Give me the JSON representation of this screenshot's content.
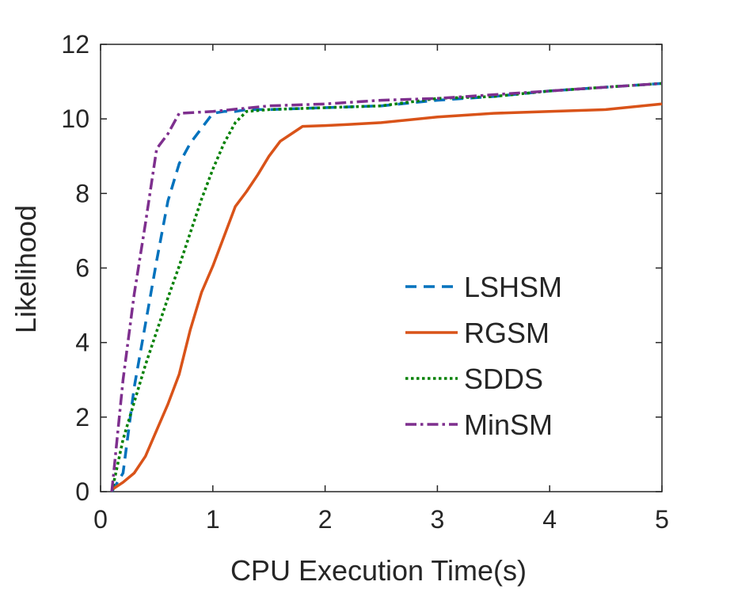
{
  "chart_data": {
    "type": "line",
    "title": "",
    "xlabel": "CPU Execution Time(s)",
    "ylabel": "Likelihood",
    "xlim": [
      0,
      5
    ],
    "ylim": [
      0,
      12
    ],
    "xticks": [
      0,
      1,
      2,
      3,
      4,
      5
    ],
    "yticks": [
      0,
      2,
      4,
      6,
      8,
      10,
      12
    ],
    "xtick_labels": [
      "0",
      "1",
      "2",
      "3",
      "4",
      "5"
    ],
    "ytick_labels": [
      "0",
      "2",
      "4",
      "6",
      "8",
      "10",
      "12"
    ],
    "grid": false,
    "legend_position": "center-right",
    "series": [
      {
        "name": "LSHSM",
        "color": "#0072BD",
        "dash": "dashed",
        "x": [
          0.1,
          0.2,
          0.3,
          0.4,
          0.5,
          0.6,
          0.7,
          0.8,
          0.9,
          1.0,
          1.1,
          1.2,
          1.3,
          1.5,
          2.0,
          2.5,
          3.0,
          3.5,
          4.0,
          4.5,
          5.0
        ],
        "y": [
          0.0,
          0.5,
          2.8,
          4.5,
          6.2,
          7.8,
          8.8,
          9.35,
          9.75,
          10.15,
          10.2,
          10.2,
          10.25,
          10.25,
          10.3,
          10.35,
          10.5,
          10.6,
          10.75,
          10.85,
          10.95
        ]
      },
      {
        "name": "RGSM",
        "color": "#D95319",
        "dash": "solid",
        "x": [
          0.1,
          0.2,
          0.3,
          0.4,
          0.5,
          0.6,
          0.7,
          0.8,
          0.9,
          1.0,
          1.1,
          1.2,
          1.3,
          1.4,
          1.5,
          1.6,
          1.7,
          1.8,
          2.0,
          2.2,
          2.5,
          3.0,
          3.5,
          4.0,
          4.5,
          5.0
        ],
        "y": [
          0.05,
          0.25,
          0.5,
          0.95,
          1.65,
          2.35,
          3.15,
          4.35,
          5.35,
          6.05,
          6.85,
          7.65,
          8.05,
          8.5,
          9.0,
          9.4,
          9.6,
          9.8,
          9.82,
          9.85,
          9.9,
          10.05,
          10.15,
          10.2,
          10.25,
          10.4
        ]
      },
      {
        "name": "SDDS",
        "color": "#008000",
        "dash": "dotted",
        "x": [
          0.1,
          0.2,
          0.3,
          0.4,
          0.5,
          0.6,
          0.7,
          0.8,
          0.9,
          1.0,
          1.1,
          1.2,
          1.3,
          1.5,
          2.0,
          2.5,
          3.0,
          3.5,
          4.0,
          4.5,
          5.0
        ],
        "y": [
          0.0,
          1.4,
          2.4,
          3.4,
          4.3,
          5.2,
          6.05,
          6.95,
          7.85,
          8.65,
          9.35,
          9.9,
          10.2,
          10.25,
          10.3,
          10.35,
          10.55,
          10.6,
          10.75,
          10.85,
          10.95
        ]
      },
      {
        "name": "MinSM",
        "color": "#7E2F8E",
        "dash": "dashdot",
        "x": [
          0.1,
          0.2,
          0.3,
          0.4,
          0.5,
          0.6,
          0.7,
          1.0,
          1.5,
          2.0,
          2.5,
          3.0,
          3.5,
          4.0,
          4.5,
          5.0
        ],
        "y": [
          0.0,
          3.0,
          5.3,
          7.2,
          9.2,
          9.6,
          10.15,
          10.2,
          10.35,
          10.4,
          10.5,
          10.55,
          10.65,
          10.75,
          10.85,
          10.95
        ]
      }
    ]
  }
}
